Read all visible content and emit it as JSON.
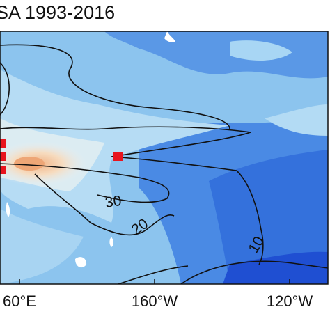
{
  "title": "SA 1993-2016",
  "x_axis": {
    "labels": [
      "60°E",
      "160°W",
      "120°W"
    ]
  },
  "contours": [
    {
      "label": "30"
    },
    {
      "label": "20"
    },
    {
      "label": "10"
    }
  ]
}
